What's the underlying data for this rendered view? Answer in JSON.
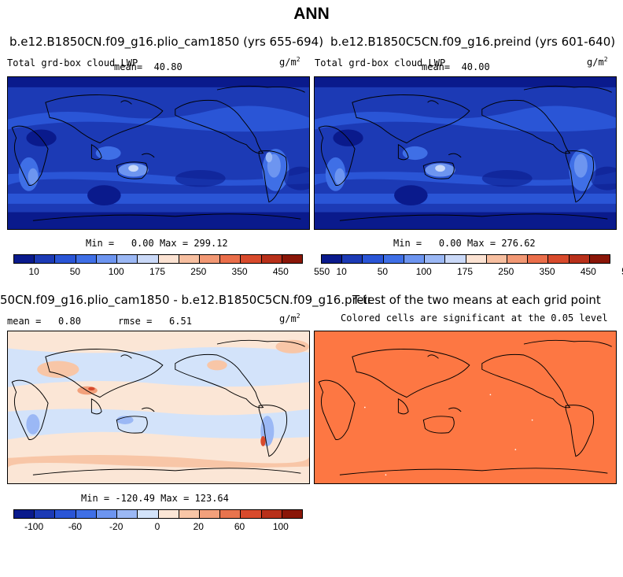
{
  "title": "ANN",
  "panels": {
    "p1": {
      "title": "b.e12.B1850CN.f09_g16.plio_cam1850 (yrs 655-694)",
      "left_label": "Total grd-box cloud LWP",
      "mean_label": "mean=",
      "mean_value": "40.80",
      "units": "g/m",
      "units_exp": "2",
      "min_label": "Min =",
      "min_value": "0.00",
      "max_label": "Max =",
      "max_value": "299.12"
    },
    "p2": {
      "title": "b.e12.B1850C5CN.f09_g16.preind (yrs 601-640)",
      "left_label": "Total grd-box cloud LWP",
      "mean_label": "mean=",
      "mean_value": "40.00",
      "units": "g/m",
      "units_exp": "2",
      "min_label": "Min =",
      "min_value": "0.00",
      "max_label": "Max =",
      "max_value": "276.62"
    },
    "p3": {
      "title": "50CN.f09_g16.plio_cam1850 - b.e12.B1850C5CN.f09_g16.preind",
      "mean_label": "mean =",
      "mean_value": "0.80",
      "rmse_label": "rmse =",
      "rmse_value": "6.51",
      "units": "g/m",
      "units_exp": "2",
      "min_label": "Min =",
      "min_value": "-120.49",
      "max_label": "Max =",
      "max_value": "123.64"
    },
    "p4": {
      "title": "T-test of the two means at each grid point",
      "subtitle": "Colored cells are significant at the 0.05 level"
    }
  },
  "colorbars": {
    "abs_colors": [
      "#0a1a8c",
      "#1c3ab5",
      "#2a55d6",
      "#3f6fe6",
      "#6d95f0",
      "#9bb8f5",
      "#cad9f8",
      "#fbe2d2",
      "#f7bfa0",
      "#f29874",
      "#ea6e4a",
      "#d84a2c",
      "#b8301a",
      "#8a1608"
    ],
    "abs_ticks": [
      "10",
      "50",
      "100",
      "175",
      "250",
      "350",
      "450",
      "550"
    ],
    "diff_colors": [
      "#0a1a8c",
      "#1c3ab5",
      "#2a55d6",
      "#3f6fe6",
      "#6d95f0",
      "#9bb8f5",
      "#d3e3fa",
      "#fbe6d6",
      "#f8c6a7",
      "#f2a07b",
      "#e8744e",
      "#d84a2c",
      "#b8301a",
      "#8a1608"
    ],
    "diff_ticks": [
      "-100",
      "-60",
      "-20",
      "0",
      "20",
      "60",
      "100"
    ]
  }
}
